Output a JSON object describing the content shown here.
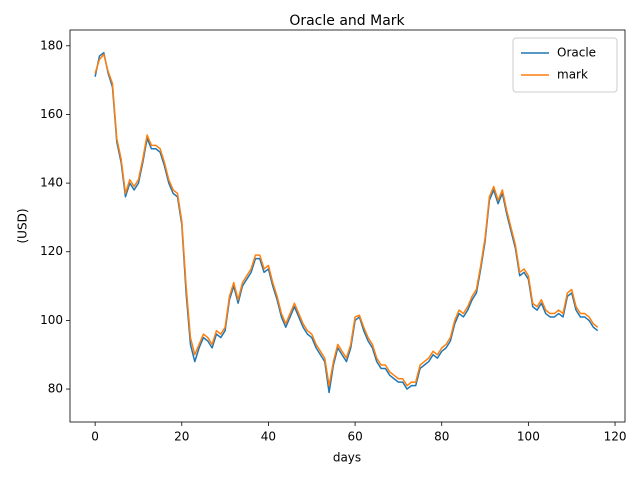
{
  "chart_data": {
    "type": "line",
    "title": "Oracle and Mark",
    "xlabel": "days",
    "ylabel": "(USD)",
    "x": [
      0,
      1,
      2,
      3,
      4,
      5,
      6,
      7,
      8,
      9,
      10,
      11,
      12,
      13,
      14,
      15,
      16,
      17,
      18,
      19,
      20,
      21,
      22,
      23,
      24,
      25,
      26,
      27,
      28,
      29,
      30,
      31,
      32,
      33,
      34,
      35,
      36,
      37,
      38,
      39,
      40,
      41,
      42,
      43,
      44,
      45,
      46,
      47,
      48,
      49,
      50,
      51,
      52,
      53,
      54,
      55,
      56,
      57,
      58,
      59,
      60,
      61,
      62,
      63,
      64,
      65,
      66,
      67,
      68,
      69,
      70,
      71,
      72,
      73,
      74,
      75,
      76,
      77,
      78,
      79,
      80,
      81,
      82,
      83,
      84,
      85,
      86,
      87,
      88,
      89,
      90,
      91,
      92,
      93,
      94,
      95,
      96,
      97,
      98,
      99,
      100,
      101,
      102,
      103,
      104,
      105,
      106,
      107,
      108,
      109,
      110,
      111,
      112,
      113,
      114,
      115,
      116
    ],
    "series": [
      {
        "name": "Oracle",
        "color": "#1f77b4",
        "values": [
          171,
          177,
          178,
          172,
          168,
          152,
          146,
          136,
          140,
          138,
          140,
          146,
          153,
          150,
          150,
          149,
          145,
          140,
          137,
          136,
          128,
          108,
          93,
          88,
          92,
          95,
          94,
          92,
          96,
          95,
          97,
          106,
          110,
          105,
          110,
          112,
          114,
          118,
          118,
          114,
          115,
          110,
          106,
          101,
          98,
          101,
          104,
          101,
          98,
          96,
          95,
          92,
          90,
          88,
          79,
          87,
          92,
          90,
          88,
          92,
          100,
          101,
          97,
          94,
          92,
          88,
          86,
          86,
          84,
          83,
          82,
          82,
          80,
          81,
          81,
          86,
          87,
          88,
          90,
          89,
          91,
          92,
          94,
          99,
          102,
          101,
          103,
          106,
          108,
          115,
          123,
          135,
          138,
          134,
          137,
          131,
          126,
          121,
          113,
          114,
          112,
          104,
          103,
          105,
          102,
          101,
          101,
          102,
          101,
          107,
          108,
          103,
          101,
          101,
          100,
          98,
          97
        ]
      },
      {
        "name": "mark",
        "color": "#ff7f0e",
        "values": [
          172,
          176,
          177.5,
          172.5,
          169,
          153,
          147,
          137,
          141,
          139,
          141,
          147,
          154,
          151,
          151,
          150,
          146,
          141,
          138,
          137,
          129,
          110,
          95,
          90,
          93,
          96,
          95,
          93,
          97,
          96,
          98,
          107,
          111,
          106,
          111,
          113,
          115,
          119,
          119,
          115,
          116,
          111,
          107,
          102,
          99,
          102,
          105,
          102,
          99,
          97,
          96,
          93,
          91,
          89,
          81,
          88,
          93,
          91,
          89,
          93,
          101,
          101.5,
          98,
          95,
          93,
          89,
          87,
          87,
          85,
          84,
          83,
          83,
          81,
          82,
          82,
          87,
          88,
          89,
          91,
          90,
          92,
          93,
          95,
          100,
          103,
          102,
          104,
          107,
          109,
          116,
          124,
          136,
          139,
          135,
          138,
          132,
          127,
          122,
          114,
          115,
          113,
          105,
          104,
          106,
          103,
          102,
          102,
          103,
          102,
          108,
          109,
          104,
          102,
          102,
          101,
          99,
          98
        ]
      }
    ],
    "xlim": [
      -5.8,
      122.3
    ],
    "ylim": [
      70.4,
      184.6
    ],
    "xticks": [
      0,
      20,
      40,
      60,
      80,
      100,
      120
    ],
    "yticks": [
      80,
      100,
      120,
      140,
      160,
      180
    ],
    "legend": "upper right"
  }
}
